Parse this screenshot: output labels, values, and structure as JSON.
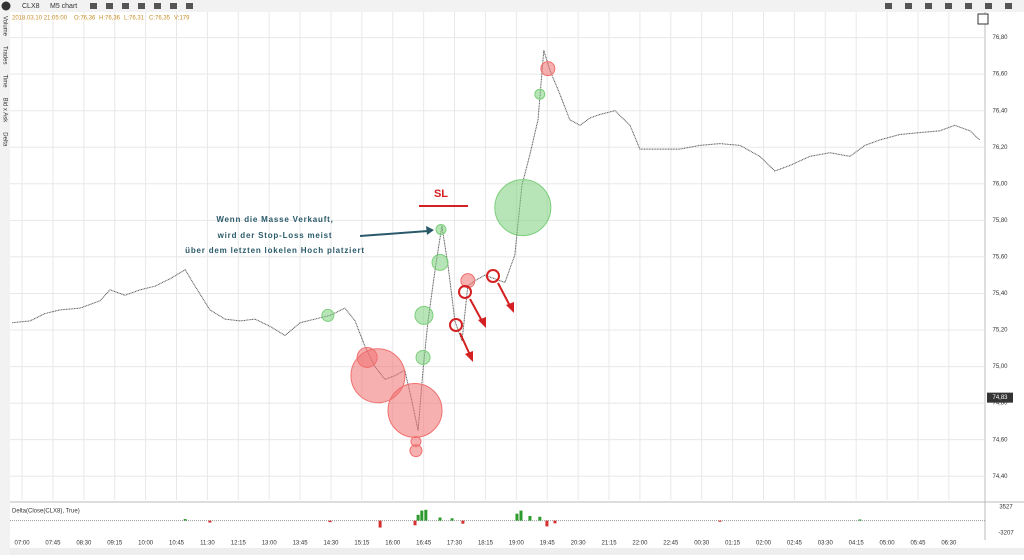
{
  "toolbar": {
    "symbol": "CLX8",
    "chart_type": "M5 chart"
  },
  "ohlc_header": [
    "2018.03.10 21:05:00",
    "O:76,36",
    "H:76,36",
    "L:76,31",
    "C:76,35",
    "V:179"
  ],
  "sidebar": [
    "Volume",
    "Trades",
    "Time",
    "Bid x Ask",
    "Delta"
  ],
  "chart_data": {
    "type": "line",
    "xlim": [
      -0.39,
      31.17
    ],
    "xticks": [
      {
        "value": 0,
        "label": "07:00"
      },
      {
        "value": 1,
        "label": "07:45"
      },
      {
        "value": 2,
        "label": "08:30"
      },
      {
        "value": 3,
        "label": "09:15"
      },
      {
        "value": 4,
        "label": "10:00"
      },
      {
        "value": 5,
        "label": "10:45"
      },
      {
        "value": 6,
        "label": "11:30"
      },
      {
        "value": 7,
        "label": "12:15"
      },
      {
        "value": 8,
        "label": "13:00"
      },
      {
        "value": 9,
        "label": "13:45"
      },
      {
        "value": 10,
        "label": "14:30"
      },
      {
        "value": 11,
        "label": "15:15"
      },
      {
        "value": 12,
        "label": "16:00"
      },
      {
        "value": 13,
        "label": "16:45"
      },
      {
        "value": 14,
        "label": "17:30"
      },
      {
        "value": 15,
        "label": "18:15"
      },
      {
        "value": 16,
        "label": "19:00"
      },
      {
        "value": 17,
        "label": "19:45"
      },
      {
        "value": 18,
        "label": "20:30"
      },
      {
        "value": 19,
        "label": "21:15"
      },
      {
        "value": 20,
        "label": "22:00"
      },
      {
        "value": 21,
        "label": "22:45"
      },
      {
        "value": 22,
        "label": "00:30"
      },
      {
        "value": 23,
        "label": "01:15"
      },
      {
        "value": 24,
        "label": "02:00"
      },
      {
        "value": 25,
        "label": "02:45"
      },
      {
        "value": 26,
        "label": "03:30"
      },
      {
        "value": 27,
        "label": "04:15"
      },
      {
        "value": 28,
        "label": "05:00"
      },
      {
        "value": 29,
        "label": "05:45"
      },
      {
        "value": 30,
        "label": "06:30"
      }
    ],
    "ylim": [
      74.27,
      76.94
    ],
    "yticks": [
      {
        "value": 76.8,
        "label": "76,80"
      },
      {
        "value": 76.6,
        "label": "76,60"
      },
      {
        "value": 76.4,
        "label": "76,40"
      },
      {
        "value": 76.2,
        "label": "76,20"
      },
      {
        "value": 76.0,
        "label": "76,00"
      },
      {
        "value": 75.8,
        "label": "75,80"
      },
      {
        "value": 75.6,
        "label": "75,60"
      },
      {
        "value": 75.4,
        "label": "75,40"
      },
      {
        "value": 75.2,
        "label": "75,20"
      },
      {
        "value": 75.0,
        "label": "75,00"
      },
      {
        "value": 74.8,
        "label": "74,80"
      },
      {
        "value": 74.6,
        "label": "74,60"
      },
      {
        "value": 74.4,
        "label": "74,40"
      }
    ],
    "grid": true,
    "price": {
      "color": "#555555",
      "x": [
        -0.32,
        0.26,
        0.74,
        1.23,
        1.88,
        2.52,
        2.85,
        3.33,
        3.82,
        4.3,
        4.79,
        5.28,
        5.6,
        6.08,
        6.57,
        7.06,
        7.54,
        8.03,
        8.51,
        9.0,
        9.48,
        9.97,
        10.45,
        10.78,
        11.1,
        11.42,
        11.75,
        12.07,
        12.39,
        12.62,
        12.82,
        12.98,
        13.14,
        13.37,
        13.59,
        13.79,
        14.01,
        14.24,
        14.43,
        14.66,
        14.98,
        15.31,
        15.63,
        15.95,
        16.18,
        16.44,
        16.7,
        16.89,
        17.09,
        17.41,
        17.73,
        18.06,
        18.38,
        18.71,
        19.19,
        19.68,
        20.0,
        20.65,
        21.29,
        21.94,
        22.59,
        23.24,
        23.88,
        24.37,
        24.85,
        25.5,
        26.15,
        26.8,
        27.28,
        27.77,
        28.41,
        29.06,
        29.71,
        30.19,
        30.68,
        31.0
      ],
      "values": [
        75.24,
        75.25,
        75.29,
        75.31,
        75.32,
        75.36,
        75.42,
        75.39,
        75.42,
        75.44,
        75.48,
        75.53,
        75.44,
        75.31,
        75.26,
        75.25,
        75.26,
        75.22,
        75.17,
        75.24,
        75.26,
        75.28,
        75.32,
        75.25,
        75.11,
        75.0,
        74.93,
        74.95,
        74.98,
        74.81,
        74.65,
        74.98,
        75.25,
        75.53,
        75.77,
        75.55,
        75.25,
        75.14,
        75.44,
        75.47,
        75.5,
        75.48,
        75.46,
        75.61,
        75.99,
        76.16,
        76.35,
        76.73,
        76.62,
        76.49,
        76.35,
        76.32,
        76.36,
        76.38,
        76.4,
        76.32,
        76.19,
        76.19,
        76.19,
        76.21,
        76.22,
        76.21,
        76.15,
        76.07,
        76.1,
        76.15,
        76.17,
        76.15,
        76.21,
        76.24,
        76.27,
        76.28,
        76.29,
        76.32,
        76.29,
        76.24
      ]
    },
    "bubbles": {
      "x": [
        9.9,
        11.17,
        11.52,
        12.72,
        12.75,
        12.75,
        12.98,
        13.01,
        13.53,
        13.56,
        14.43,
        16.21,
        16.76,
        17.02
      ],
      "y": [
        75.28,
        75.05,
        74.95,
        74.76,
        74.59,
        74.54,
        75.05,
        75.28,
        75.57,
        75.75,
        75.47,
        75.87,
        76.49,
        76.63
      ],
      "sizes": [
        6,
        10,
        27,
        27,
        5,
        6,
        7,
        9,
        8,
        5,
        7,
        28,
        5,
        7
      ],
      "colors": [
        "#7ccf7c",
        "#f07070",
        "#f07070",
        "#f07070",
        "#f07070",
        "#f07070",
        "#7ccf7c",
        "#7ccf7c",
        "#7ccf7c",
        "#7ccf7c",
        "#f07070",
        "#7ccf7c",
        "#7ccf7c",
        "#f07070"
      ]
    },
    "annotation": [
      "Wenn die Masse Verkauft,",
      "wird der Stop-Loss meist",
      "über dem letzten lokelen Hoch platziert"
    ],
    "sl_label": "SL",
    "price_marker": {
      "value": 74.83,
      "label": "74,83"
    },
    "delta_panel": {
      "label": "Delta(Close(CLX8), True)",
      "ylim": [
        -3207,
        3527
      ],
      "yticks": [
        3527,
        -3207
      ],
      "x": [
        5.28,
        6.08,
        9.97,
        11.59,
        12.72,
        12.82,
        12.94,
        13.07,
        13.53,
        13.92,
        14.27,
        16.02,
        16.15,
        16.44,
        16.76,
        16.99,
        17.25,
        22.59,
        27.12
      ],
      "values": [
        400,
        -500,
        -400,
        -1800,
        -1200,
        1500,
        2600,
        2800,
        800,
        600,
        -800,
        1800,
        2600,
        1200,
        1000,
        -1500,
        -700,
        -300,
        300
      ],
      "up_color": "#2e9a2e",
      "down_color": "#d43030"
    }
  }
}
